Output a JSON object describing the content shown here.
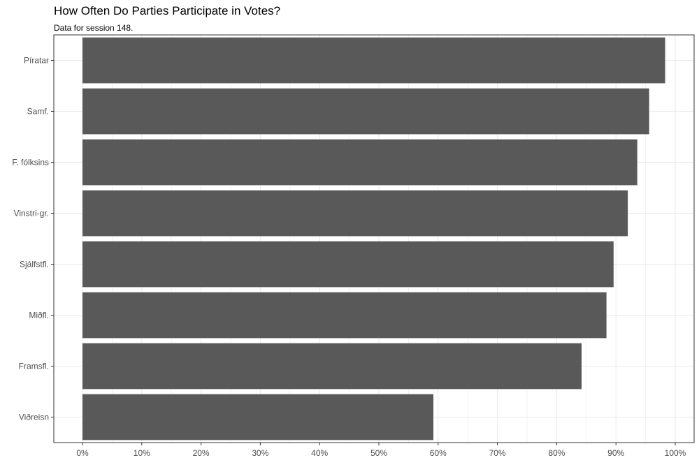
{
  "chart_data": {
    "type": "bar",
    "orientation": "horizontal",
    "title": "How Often Do Parties Participate in Votes?",
    "subtitle": "Data for session 148.",
    "xlabel": "",
    "ylabel": "",
    "categories": [
      "Píratar",
      "Samf.",
      "F. fólksins",
      "Vinstri-gr.",
      "Sjálfstfl.",
      "Miðfl.",
      "Framsfl.",
      "Viðreisn"
    ],
    "values": [
      98.3,
      95.6,
      93.6,
      92.0,
      89.6,
      88.4,
      84.2,
      59.2
    ],
    "xlim": [
      0,
      100
    ],
    "x_ticks": [
      0,
      10,
      20,
      30,
      40,
      50,
      60,
      70,
      80,
      90,
      100
    ],
    "x_tick_labels": [
      "0%",
      "10%",
      "20%",
      "30%",
      "40%",
      "50%",
      "60%",
      "70%",
      "80%",
      "90%",
      "100%"
    ],
    "grid": true,
    "colors": {
      "bar": "#595959",
      "grid": "#ebebeb",
      "panel_border": "#333333",
      "tick_text": "#4d4d4d"
    }
  }
}
